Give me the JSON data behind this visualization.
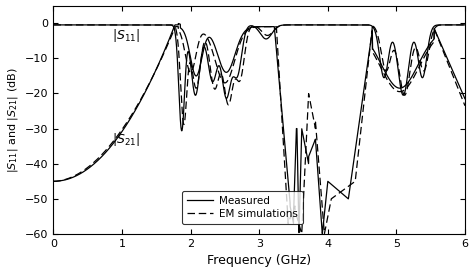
{
  "xlabel": "Frequency (GHz)",
  "ylabel": "|$S_{11}$| and |$S_{21}$| (dB)",
  "xlim": [
    0,
    6
  ],
  "ylim": [
    -60,
    5
  ],
  "yticks": [
    0,
    -10,
    -20,
    -30,
    -40,
    -50,
    -60
  ],
  "xticks": [
    0,
    1,
    2,
    3,
    4,
    5,
    6
  ],
  "label_S11": "|$S_{11}$|",
  "label_S21": "|$S_{21}$|",
  "legend_measured": "Measured",
  "legend_em": "EM simulations",
  "background": "#ffffff"
}
